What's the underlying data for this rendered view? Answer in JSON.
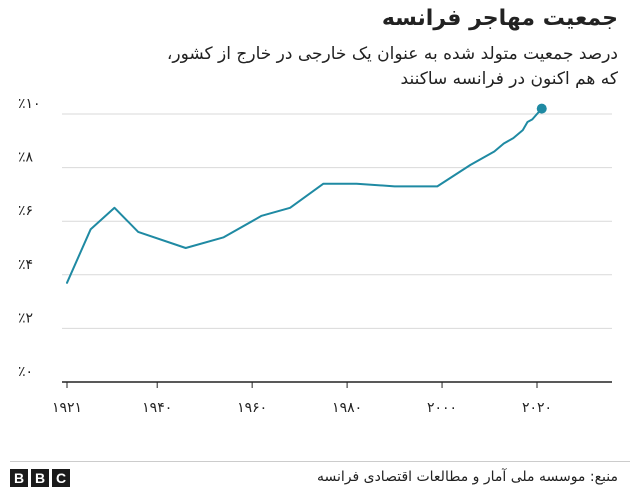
{
  "title": "جمعیت مهاجر فرانسه",
  "subtitle_lines": [
    "درصد جمعیت متولد شده به عنوان یک خارجی در خارج از کشور،",
    "که هم اکنون در فرانسه ساکنند"
  ],
  "source": "منبع: موسسه ملی آمار و مطالعات اقتصادی فرانسه",
  "logo_letters": [
    "B",
    "B",
    "C"
  ],
  "colors": {
    "line": "#1f8aa3",
    "grid": "#d9d9d9",
    "baseline": "#222222",
    "text": "#222222"
  },
  "chart_data": {
    "type": "line",
    "title": "جمعیت مهاجر فرانسه",
    "xlabel": "",
    "ylabel": "",
    "xlim": [
      1921,
      2021
    ],
    "ylim": [
      0,
      10
    ],
    "grid": true,
    "x_ticks": [
      1921,
      1940,
      1960,
      1980,
      2000,
      2020
    ],
    "x_tick_labels": [
      "۱۹۲۱",
      "۱۹۴۰",
      "۱۹۶۰",
      "۱۹۸۰",
      "۲۰۰۰",
      "۲۰۲۰"
    ],
    "y_ticks": [
      0,
      2,
      4,
      6,
      8,
      10
    ],
    "y_tick_labels": [
      "٪۰",
      "٪۲",
      "٪۴",
      "٪۶",
      "٪۸",
      "٪۱۰"
    ],
    "series": [
      {
        "x": [
          1921,
          1926,
          1931,
          1936,
          1946,
          1954,
          1962,
          1968,
          1975,
          1982,
          1990,
          1999,
          2006,
          2011,
          2013,
          2015,
          2017,
          2018,
          2019,
          2020,
          2021
        ],
        "y": [
          3.7,
          5.7,
          6.5,
          5.6,
          5.0,
          5.4,
          6.2,
          6.5,
          7.4,
          7.4,
          7.3,
          7.3,
          8.1,
          8.6,
          8.9,
          9.1,
          9.4,
          9.7,
          9.8,
          10.0,
          10.2
        ],
        "marker_last": true
      }
    ]
  }
}
